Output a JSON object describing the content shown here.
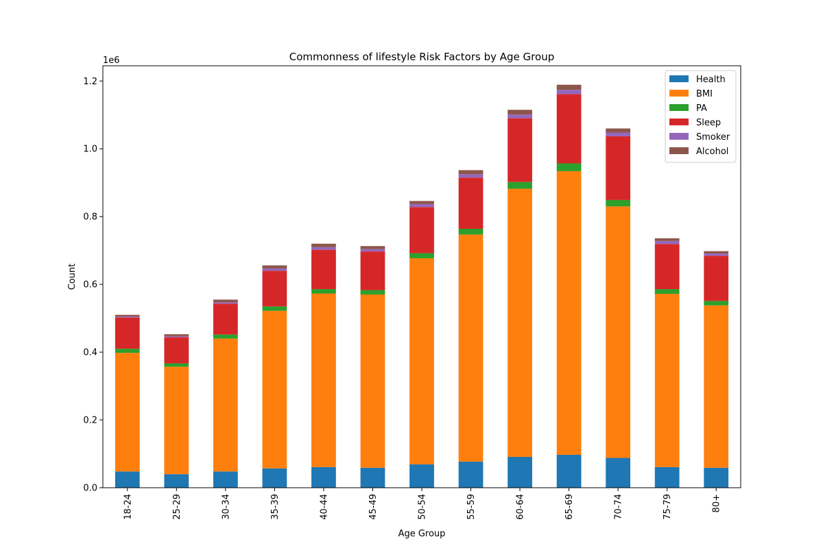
{
  "chart_data": {
    "type": "bar",
    "stacked": true,
    "title": "Commonness of lifestyle Risk Factors by Age Group",
    "xlabel": "Age Group",
    "ylabel": "Count",
    "y_scale_label": "1e6",
    "ylim": [
      0,
      1245000
    ],
    "y_scale_factor": 1000000,
    "y_ticks": [
      0,
      200000,
      400000,
      600000,
      800000,
      1000000,
      1200000
    ],
    "y_tick_labels": [
      "0.0",
      "0.2",
      "0.4",
      "0.6",
      "0.8",
      "1.0",
      "1.2"
    ],
    "categories": [
      "18-24",
      "25-29",
      "30-34",
      "35-39",
      "40-44",
      "45-49",
      "50-54",
      "55-59",
      "60-64",
      "65-69",
      "70-74",
      "75-79",
      "80+"
    ],
    "legend_position": "top-right",
    "grid": false,
    "series": [
      {
        "name": "Health",
        "color": "#1f77b4",
        "values": [
          48000,
          40000,
          48000,
          57000,
          61000,
          59000,
          69000,
          77000,
          91000,
          97000,
          88000,
          61000,
          59000
        ]
      },
      {
        "name": "BMI",
        "color": "#ff7f0e",
        "values": [
          350000,
          317000,
          392000,
          465000,
          512000,
          511000,
          608000,
          670000,
          791000,
          837000,
          742000,
          511000,
          479000
        ]
      },
      {
        "name": "PA",
        "color": "#2ca02c",
        "values": [
          12000,
          10000,
          12000,
          13000,
          13000,
          13000,
          15000,
          17000,
          20000,
          23000,
          19000,
          14000,
          13000
        ]
      },
      {
        "name": "Sleep",
        "color": "#d62728",
        "values": [
          92000,
          77000,
          91000,
          105000,
          116000,
          114000,
          136000,
          151000,
          188000,
          204000,
          188000,
          133000,
          133000
        ]
      },
      {
        "name": "Smoker",
        "color": "#9467bd",
        "values": [
          3000,
          3000,
          4000,
          7000,
          8000,
          7000,
          9000,
          10000,
          11000,
          13000,
          11000,
          9000,
          7000
        ]
      },
      {
        "name": "Alcohol",
        "color": "#8c564b",
        "values": [
          5000,
          6000,
          8000,
          9000,
          10000,
          9000,
          9000,
          12000,
          14000,
          15000,
          12000,
          8000,
          7000
        ]
      }
    ]
  }
}
